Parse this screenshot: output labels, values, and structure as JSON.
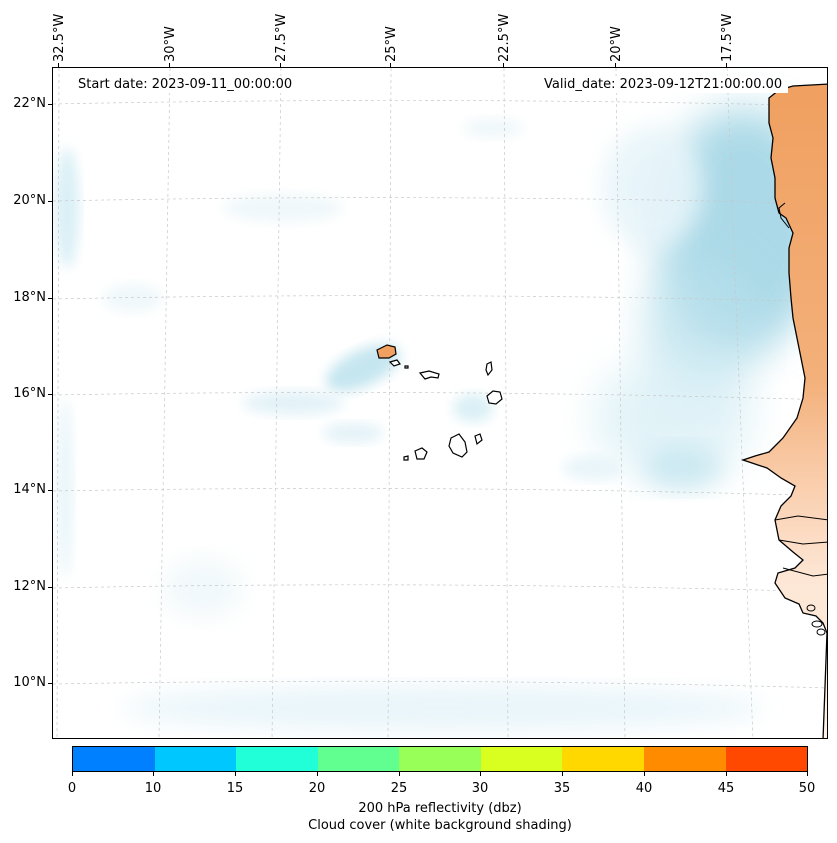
{
  "map": {
    "lon_labels": [
      "32.5°W",
      "30°W",
      "27.5°W",
      "25°W",
      "22.5°W",
      "20°W",
      "17.5°W"
    ],
    "lat_labels": [
      "22°N",
      "20°N",
      "18°N",
      "16°N",
      "14°N",
      "12°N",
      "10°N"
    ],
    "start_date": "Start date: 2023-09-11_00:00:00",
    "valid_date": "Valid_date: 2023-09-12T21:00:00.00",
    "colors": {
      "ocean": "#ffffff",
      "cloud_light": "#e6f4f9",
      "cloud_mid": "#b8e0ec",
      "cloud_dense": "#9dd3e3",
      "land_orange": "#f0a060",
      "land_pale": "#fde4d0",
      "coast": "#000000",
      "grid": "#c8c8c8"
    }
  },
  "colorbar": {
    "ticks": [
      "0",
      "10",
      "15",
      "20",
      "25",
      "30",
      "35",
      "40",
      "45",
      "50"
    ],
    "colors": [
      "#0080ff",
      "#00c8ff",
      "#20ffd8",
      "#60ff90",
      "#98ff58",
      "#d8ff20",
      "#ffd800",
      "#ff8c00",
      "#ff4800"
    ],
    "label": "200 hPa reflectivity (dbz)",
    "sublabel": "Cloud cover (white background shading)"
  }
}
